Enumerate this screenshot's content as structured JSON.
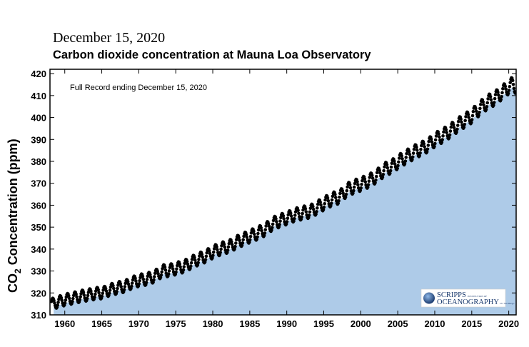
{
  "header": {
    "date": "December 15, 2020",
    "title": "Carbon dioxide concentration at Mauna Loa Observatory"
  },
  "logo": {
    "line1_main": "SCRIPPS",
    "line1_small": "INSTITUTION OF",
    "line2_main": "OCEANOGRAPHY",
    "line2_small": "UC San Diego",
    "icon": "globe-icon"
  },
  "chart_data": {
    "type": "scatter",
    "title": "Carbon dioxide concentration at Mauna Loa Observatory",
    "annotation": "Full Record ending December 15, 2020",
    "ylabel_main": "CO",
    "ylabel_sub": "2",
    "ylabel_rest": " Concentration (ppm)",
    "xlim": [
      1958,
      2021
    ],
    "ylim": [
      310,
      422
    ],
    "x_ticks": [
      1960,
      1965,
      1970,
      1975,
      1980,
      1985,
      1990,
      1995,
      2000,
      2005,
      2010,
      2015,
      2020
    ],
    "y_ticks": [
      310,
      320,
      330,
      340,
      350,
      360,
      370,
      380,
      390,
      400,
      410,
      420
    ],
    "fill_color": "#aecbe8",
    "point_color": "#000000",
    "series": [
      {
        "x": [
          1958.5,
          1959,
          1959.5,
          1960,
          1960.5,
          1961,
          1961.5,
          1962,
          1962.5,
          1963,
          1963.5,
          1964,
          1964.5,
          1965,
          1965.5,
          1966,
          1966.5,
          1967,
          1967.5,
          1968,
          1968.5,
          1969,
          1969.5,
          1970,
          1970.5,
          1971,
          1971.5,
          1972,
          1972.5,
          1973,
          1973.5,
          1974,
          1974.5,
          1975,
          1975.5,
          1976,
          1976.5,
          1977,
          1977.5,
          1978,
          1978.5,
          1979,
          1979.5,
          1980,
          1980.5,
          1981,
          1981.5,
          1982,
          1982.5,
          1983,
          1983.5,
          1984,
          1984.5,
          1985,
          1985.5,
          1986,
          1986.5,
          1987,
          1987.5,
          1988,
          1988.5,
          1989,
          1989.5,
          1990,
          1990.5,
          1991,
          1991.5,
          1992,
          1992.5,
          1993,
          1993.5,
          1994,
          1994.5,
          1995,
          1995.5,
          1996,
          1996.5,
          1997,
          1997.5,
          1998,
          1998.5,
          1999,
          1999.5,
          2000,
          2000.5,
          2001,
          2001.5,
          2002,
          2002.5,
          2003,
          2003.5,
          2004,
          2004.5,
          2005,
          2005.5,
          2006,
          2006.5,
          2007,
          2007.5,
          2008,
          2008.5,
          2009,
          2009.5,
          2010,
          2010.5,
          2011,
          2011.5,
          2012,
          2012.5,
          2013,
          2013.5,
          2014,
          2014.5,
          2015,
          2015.5,
          2016,
          2016.5,
          2017,
          2017.5,
          2018,
          2018.5,
          2019,
          2019.5,
          2020,
          2020.5,
          2020.96
        ],
        "y": [
          315.0,
          315.9,
          316.2,
          316.9,
          317.2,
          317.6,
          317.9,
          318.4,
          318.7,
          319.0,
          319.3,
          319.6,
          319.9,
          320.0,
          320.4,
          321.4,
          321.7,
          322.2,
          322.6,
          323.0,
          323.5,
          324.6,
          325.1,
          325.7,
          326.0,
          326.3,
          326.7,
          327.5,
          328.2,
          329.7,
          330.2,
          330.2,
          330.6,
          331.1,
          331.5,
          332.1,
          332.6,
          333.8,
          334.5,
          335.4,
          335.9,
          336.8,
          337.5,
          338.7,
          339.3,
          340.1,
          340.5,
          341.1,
          341.6,
          342.8,
          343.5,
          344.4,
          344.9,
          345.9,
          346.4,
          347.2,
          347.9,
          348.9,
          349.8,
          351.5,
          352.1,
          352.9,
          353.4,
          354.2,
          354.6,
          355.6,
          355.9,
          356.4,
          356.7,
          357.1,
          357.6,
          358.8,
          359.6,
          360.8,
          361.5,
          362.6,
          363.1,
          363.7,
          364.7,
          366.7,
          367.5,
          368.4,
          368.9,
          369.6,
          370.2,
          371.1,
          371.7,
          373.2,
          374.0,
          375.8,
          376.6,
          377.5,
          378.2,
          379.8,
          380.6,
          381.9,
          382.6,
          383.8,
          384.6,
          385.6,
          386.1,
          387.4,
          388.2,
          389.9,
          390.6,
          391.7,
          392.5,
          393.9,
          394.7,
          396.5,
          397.3,
          398.7,
          399.4,
          400.8,
          402.1,
          404.2,
          405.1,
          406.8,
          407.6,
          408.7,
          409.5,
          411.4,
          412.2,
          414.2,
          415.0,
          414.3
        ]
      }
    ]
  }
}
